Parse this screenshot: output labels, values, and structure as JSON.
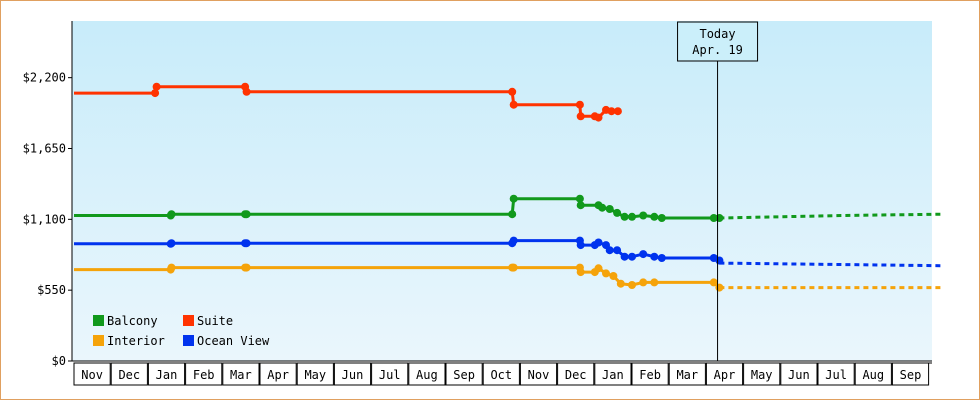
{
  "chart_data": {
    "type": "line",
    "title": "",
    "xlabel": "",
    "ylabel": "",
    "ylim": [
      0,
      2640
    ],
    "y_ticks": [
      {
        "value": 0,
        "label": "$0"
      },
      {
        "value": 550,
        "label": "$550"
      },
      {
        "value": 1100,
        "label": "$1,100"
      },
      {
        "value": 1650,
        "label": "$1,650"
      },
      {
        "value": 2200,
        "label": "$2,200"
      }
    ],
    "months": [
      "Nov",
      "Dec",
      "Jan",
      "Feb",
      "Mar",
      "Apr",
      "May",
      "Jun",
      "Jul",
      "Aug",
      "Sep",
      "Oct",
      "Nov",
      "Dec",
      "Jan",
      "Feb",
      "Mar",
      "Apr",
      "May",
      "Jun",
      "Jul",
      "Aug",
      "Sep"
    ],
    "x_unit": "months since start of first Nov",
    "today": {
      "x": 17.3,
      "label_line1": "Today",
      "label_line2": "Apr. 19"
    },
    "grid": false,
    "legend_position": "bottom-left",
    "background_gradient": [
      "#c8ecfa",
      "#eaf6fc"
    ],
    "series": [
      {
        "name": "Suite",
        "color": "#ff3300",
        "points": [
          [
            0,
            2080
          ],
          [
            2.18,
            2080
          ],
          [
            2.22,
            2130
          ],
          [
            4.6,
            2130
          ],
          [
            4.64,
            2090
          ],
          [
            11.78,
            2090
          ],
          [
            11.82,
            1990
          ],
          [
            13.6,
            1990
          ],
          [
            13.62,
            1900
          ],
          [
            14.0,
            1900
          ],
          [
            14.1,
            1890
          ],
          [
            14.3,
            1950
          ],
          [
            14.45,
            1940
          ],
          [
            14.62,
            1940
          ]
        ],
        "dashed": []
      },
      {
        "name": "Balcony",
        "color": "#11991c",
        "points": [
          [
            0,
            1130
          ],
          [
            2.6,
            1130
          ],
          [
            2.62,
            1140
          ],
          [
            4.6,
            1140
          ],
          [
            4.64,
            1140
          ],
          [
            11.78,
            1140
          ],
          [
            11.82,
            1260
          ],
          [
            13.6,
            1260
          ],
          [
            13.62,
            1210
          ],
          [
            14.1,
            1210
          ],
          [
            14.2,
            1190
          ],
          [
            14.4,
            1180
          ],
          [
            14.6,
            1150
          ],
          [
            14.8,
            1120
          ],
          [
            15.0,
            1120
          ],
          [
            15.3,
            1130
          ],
          [
            15.6,
            1120
          ],
          [
            15.8,
            1110
          ],
          [
            17.2,
            1110
          ],
          [
            17.35,
            1110
          ]
        ],
        "dashed": [
          [
            17.35,
            1110
          ],
          [
            20.7,
            1130
          ],
          [
            23.3,
            1140
          ]
        ]
      },
      {
        "name": "Ocean View",
        "color": "#0033ee",
        "points": [
          [
            0,
            910
          ],
          [
            2.6,
            910
          ],
          [
            2.62,
            915
          ],
          [
            4.6,
            915
          ],
          [
            4.64,
            915
          ],
          [
            11.78,
            915
          ],
          [
            11.82,
            935
          ],
          [
            13.6,
            935
          ],
          [
            13.62,
            900
          ],
          [
            14.0,
            900
          ],
          [
            14.1,
            920
          ],
          [
            14.3,
            900
          ],
          [
            14.4,
            860
          ],
          [
            14.6,
            860
          ],
          [
            14.8,
            810
          ],
          [
            15.0,
            810
          ],
          [
            15.3,
            830
          ],
          [
            15.6,
            810
          ],
          [
            15.8,
            800
          ],
          [
            17.2,
            800
          ],
          [
            17.35,
            780
          ]
        ],
        "dashed": [
          [
            17.35,
            760
          ],
          [
            23.3,
            740
          ]
        ]
      },
      {
        "name": "Interior",
        "color": "#f5a30a",
        "points": [
          [
            0,
            710
          ],
          [
            2.6,
            710
          ],
          [
            2.62,
            725
          ],
          [
            4.6,
            725
          ],
          [
            4.64,
            725
          ],
          [
            11.78,
            725
          ],
          [
            11.82,
            725
          ],
          [
            13.6,
            725
          ],
          [
            13.62,
            690
          ],
          [
            14.0,
            690
          ],
          [
            14.1,
            720
          ],
          [
            14.3,
            680
          ],
          [
            14.5,
            660
          ],
          [
            14.7,
            600
          ],
          [
            15.0,
            590
          ],
          [
            15.3,
            610
          ],
          [
            15.6,
            610
          ],
          [
            17.2,
            610
          ],
          [
            17.35,
            570
          ]
        ],
        "dashed": [
          [
            17.35,
            570
          ],
          [
            23.3,
            570
          ]
        ]
      }
    ]
  },
  "legend": {
    "items": [
      {
        "label": "Balcony",
        "color": "#11991c"
      },
      {
        "label": "Suite",
        "color": "#ff3300"
      },
      {
        "label": "Interior",
        "color": "#f5a30a"
      },
      {
        "label": "Ocean View",
        "color": "#0033ee"
      }
    ]
  }
}
